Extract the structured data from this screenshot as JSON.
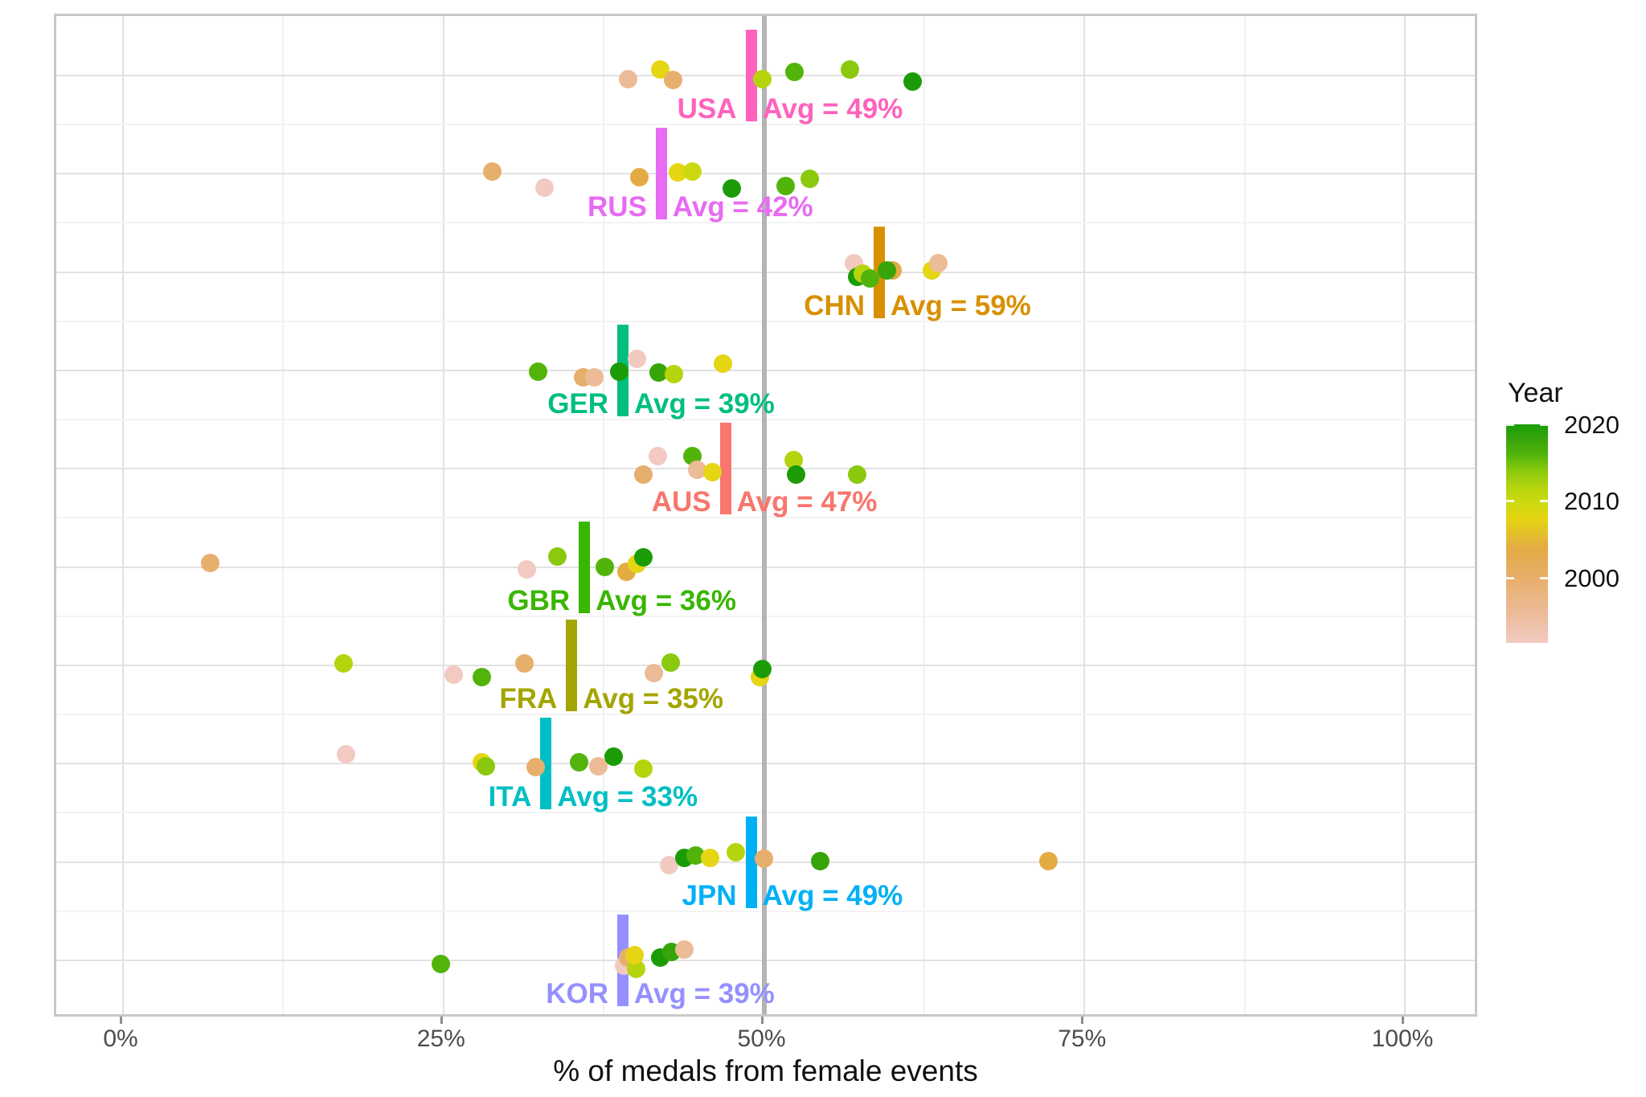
{
  "chart_data": {
    "type": "scatter",
    "title": "",
    "xlabel": "% of medals from female events",
    "xlim": [
      0,
      100
    ],
    "grid": true,
    "x_ticks": [
      {
        "pct": 0,
        "label": "0%"
      },
      {
        "pct": 25,
        "label": "25%"
      },
      {
        "pct": 50,
        "label": "50%"
      },
      {
        "pct": 75,
        "label": "75%"
      },
      {
        "pct": 100,
        "label": "100%"
      }
    ],
    "x_minor_gridlines_pct": [
      12.5,
      37.5,
      62.5,
      87.5
    ],
    "reference_line_pct": 50,
    "reference_line_color": "#b4b4b4",
    "color_scale": {
      "title": "Year",
      "tick_labels": [
        "2020",
        "2010",
        "2000"
      ],
      "tick_years": [
        2020,
        2010,
        2000
      ],
      "year_min": 1992,
      "year_max": 2020,
      "legend_position": "right",
      "anchors": [
        {
          "year": 2020,
          "color": "#1b9c07"
        },
        {
          "year": 2018,
          "color": "#37a50a"
        },
        {
          "year": 2016,
          "color": "#52b40b"
        },
        {
          "year": 2014,
          "color": "#8ac90d"
        },
        {
          "year": 2012,
          "color": "#b5d40e"
        },
        {
          "year": 2010,
          "color": "#cdd910"
        },
        {
          "year": 2008,
          "color": "#e5d513"
        },
        {
          "year": 2004,
          "color": "#e3ab44"
        },
        {
          "year": 2000,
          "color": "#e7af6c"
        },
        {
          "year": 1996,
          "color": "#ecbb97"
        },
        {
          "year": 1992,
          "color": "#f2cac2"
        }
      ]
    },
    "countries": [
      {
        "code": "USA",
        "color": "#FF62BC",
        "avg_pct": 49,
        "avg_label": "Avg = 49%",
        "dots": [
          {
            "pct": 39.4,
            "year": 1996,
            "dy": 4
          },
          {
            "pct": 41.9,
            "year": 2008,
            "dy": -8
          },
          {
            "pct": 42.9,
            "year": 2000,
            "dy": 5
          },
          {
            "pct": 49.9,
            "year": 2012,
            "dy": 4
          },
          {
            "pct": 52.4,
            "year": 2016,
            "dy": -5
          },
          {
            "pct": 56.7,
            "year": 2014,
            "dy": -8
          },
          {
            "pct": 61.6,
            "year": 2020,
            "dy": 7
          }
        ]
      },
      {
        "code": "RUS",
        "color": "#E76BF3",
        "avg_pct": 42,
        "avg_label": "Avg = 42%",
        "dots": [
          {
            "pct": 28.8,
            "year": 2000,
            "dy": -3
          },
          {
            "pct": 32.9,
            "year": 1992,
            "dy": 17
          },
          {
            "pct": 40.3,
            "year": 2004,
            "dy": 4
          },
          {
            "pct": 43.3,
            "year": 2008,
            "dy": -2
          },
          {
            "pct": 44.4,
            "year": 2010,
            "dy": -3
          },
          {
            "pct": 47.5,
            "year": 2020,
            "dy": 18
          },
          {
            "pct": 51.7,
            "year": 2016,
            "dy": 15
          },
          {
            "pct": 53.6,
            "year": 2014,
            "dy": 6
          }
        ]
      },
      {
        "code": "CHN",
        "color": "#D89000",
        "avg_pct": 59,
        "avg_label": "Avg = 59%",
        "dots": [
          {
            "pct": 57.0,
            "year": 1992,
            "dy": -11
          },
          {
            "pct": 57.3,
            "year": 2020,
            "dy": 6
          },
          {
            "pct": 57.7,
            "year": 2012,
            "dy": 2
          },
          {
            "pct": 58.3,
            "year": 2016,
            "dy": 8
          },
          {
            "pct": 60.0,
            "year": 2004,
            "dy": -2
          },
          {
            "pct": 59.6,
            "year": 2018,
            "dy": -2
          },
          {
            "pct": 63.1,
            "year": 2008,
            "dy": -2
          },
          {
            "pct": 63.6,
            "year": 1996,
            "dy": -11
          }
        ]
      },
      {
        "code": "GER",
        "color": "#00BF7D",
        "avg_pct": 39,
        "avg_label": "Avg = 39%",
        "dots": [
          {
            "pct": 32.4,
            "year": 2016,
            "dy": 2
          },
          {
            "pct": 35.9,
            "year": 2000,
            "dy": 9
          },
          {
            "pct": 36.8,
            "year": 1996,
            "dy": 9
          },
          {
            "pct": 38.7,
            "year": 2020,
            "dy": 2
          },
          {
            "pct": 40.1,
            "year": 1992,
            "dy": -14
          },
          {
            "pct": 41.8,
            "year": 2018,
            "dy": 3
          },
          {
            "pct": 43.0,
            "year": 2012,
            "dy": 5
          },
          {
            "pct": 46.8,
            "year": 2008,
            "dy": -8
          }
        ]
      },
      {
        "code": "AUS",
        "color": "#F8766D",
        "avg_pct": 47,
        "avg_label": "Avg = 47%",
        "dots": [
          {
            "pct": 40.6,
            "year": 2000,
            "dy": 7
          },
          {
            "pct": 41.7,
            "year": 1992,
            "dy": -16
          },
          {
            "pct": 44.4,
            "year": 2016,
            "dy": -16
          },
          {
            "pct": 44.8,
            "year": 1996,
            "dy": 1
          },
          {
            "pct": 46.0,
            "year": 2008,
            "dy": 4
          },
          {
            "pct": 52.3,
            "year": 2012,
            "dy": -11
          },
          {
            "pct": 52.5,
            "year": 2020,
            "dy": 7
          },
          {
            "pct": 57.3,
            "year": 2014,
            "dy": 7
          }
        ]
      },
      {
        "code": "GBR",
        "color": "#39B600",
        "avg_pct": 36,
        "avg_label": "Avg = 36%",
        "dots": [
          {
            "pct": 6.8,
            "year": 2000,
            "dy": -5
          },
          {
            "pct": 31.5,
            "year": 1992,
            "dy": 3
          },
          {
            "pct": 33.9,
            "year": 2014,
            "dy": -13
          },
          {
            "pct": 37.6,
            "year": 2016,
            "dy": 0
          },
          {
            "pct": 39.3,
            "year": 2004,
            "dy": 6
          },
          {
            "pct": 40.1,
            "year": 2008,
            "dy": -4
          },
          {
            "pct": 40.6,
            "year": 2020,
            "dy": -12
          }
        ]
      },
      {
        "code": "FRA",
        "color": "#A3A500",
        "avg_pct": 35,
        "avg_label": "Avg = 35%",
        "dots": [
          {
            "pct": 17.2,
            "year": 2012,
            "dy": -2
          },
          {
            "pct": 25.8,
            "year": 1992,
            "dy": 12
          },
          {
            "pct": 28.0,
            "year": 2016,
            "dy": 15
          },
          {
            "pct": 31.3,
            "year": 2000,
            "dy": -2
          },
          {
            "pct": 41.4,
            "year": 1996,
            "dy": 10
          },
          {
            "pct": 42.7,
            "year": 2014,
            "dy": -3
          },
          {
            "pct": 49.7,
            "year": 2008,
            "dy": 15
          },
          {
            "pct": 49.9,
            "year": 2020,
            "dy": 5
          }
        ]
      },
      {
        "code": "ITA",
        "color": "#00BFC4",
        "avg_pct": 33,
        "avg_label": "Avg = 33%",
        "dots": [
          {
            "pct": 17.4,
            "year": 1992,
            "dy": -12
          },
          {
            "pct": 28.0,
            "year": 2008,
            "dy": -2
          },
          {
            "pct": 28.3,
            "year": 2014,
            "dy": 3
          },
          {
            "pct": 32.2,
            "year": 2000,
            "dy": 4
          },
          {
            "pct": 35.6,
            "year": 2016,
            "dy": -2
          },
          {
            "pct": 37.1,
            "year": 1996,
            "dy": 3
          },
          {
            "pct": 38.3,
            "year": 2020,
            "dy": -9
          },
          {
            "pct": 40.6,
            "year": 2012,
            "dy": 6
          }
        ]
      },
      {
        "code": "JPN",
        "color": "#00B0F6",
        "avg_pct": 49,
        "avg_label": "Avg = 49%",
        "dots": [
          {
            "pct": 42.6,
            "year": 1992,
            "dy": 4
          },
          {
            "pct": 43.8,
            "year": 2020,
            "dy": -5
          },
          {
            "pct": 44.7,
            "year": 2016,
            "dy": -8
          },
          {
            "pct": 45.8,
            "year": 2008,
            "dy": -5
          },
          {
            "pct": 47.8,
            "year": 2012,
            "dy": -12
          },
          {
            "pct": 50.0,
            "year": 2000,
            "dy": -4
          },
          {
            "pct": 54.4,
            "year": 2018,
            "dy": -1
          },
          {
            "pct": 72.2,
            "year": 2004,
            "dy": -1
          }
        ]
      },
      {
        "code": "KOR",
        "color": "#9590FF",
        "avg_pct": 39,
        "avg_label": "Avg = 39%",
        "dots": [
          {
            "pct": 24.8,
            "year": 2016,
            "dy": 5
          },
          {
            "pct": 39.1,
            "year": 1992,
            "dy": 7
          },
          {
            "pct": 39.4,
            "year": 2000,
            "dy": -3
          },
          {
            "pct": 40.0,
            "year": 2012,
            "dy": 11
          },
          {
            "pct": 39.9,
            "year": 2008,
            "dy": -6
          },
          {
            "pct": 41.9,
            "year": 2020,
            "dy": -3
          },
          {
            "pct": 42.8,
            "year": 2018,
            "dy": -10
          },
          {
            "pct": 43.8,
            "year": 1996,
            "dy": -13
          }
        ]
      }
    ]
  }
}
